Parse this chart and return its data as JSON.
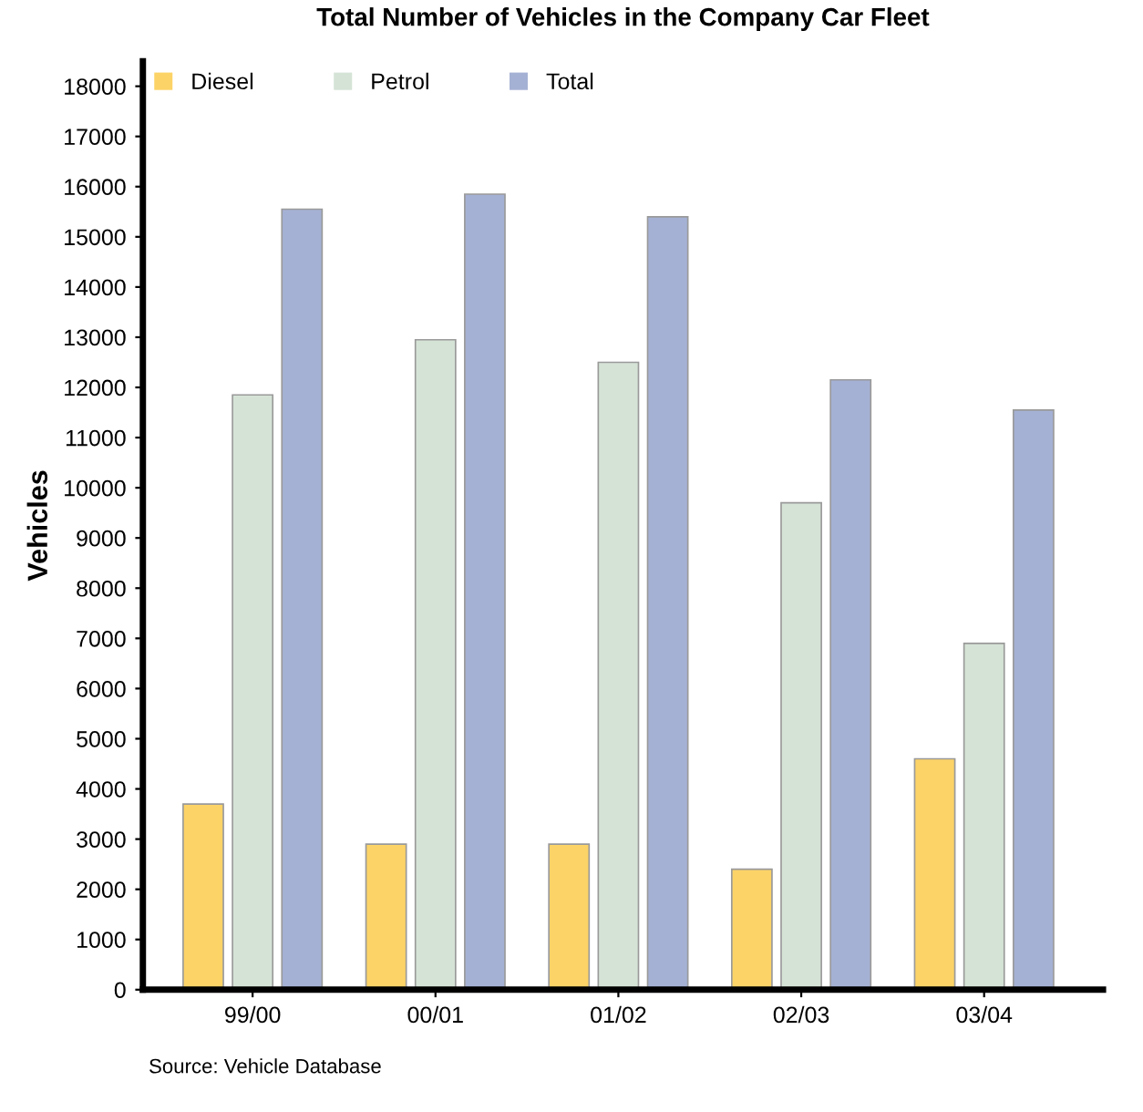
{
  "chart_data": {
    "type": "bar",
    "title": "Total Number of Vehicles in the Company Car Fleet",
    "ylabel": "Vehicles",
    "categories": [
      "99/00",
      "00/01",
      "01/02",
      "02/03",
      "03/04"
    ],
    "series": [
      {
        "name": "Diesel",
        "color": "#fcd367",
        "values": [
          3700,
          2900,
          2900,
          2400,
          4600
        ]
      },
      {
        "name": "Petrol",
        "color": "#d5e3d6",
        "values": [
          11850,
          12950,
          12500,
          9700,
          6900
        ]
      },
      {
        "name": "Total",
        "color": "#a5b1d4",
        "values": [
          15550,
          15850,
          15400,
          12150,
          11550
        ]
      }
    ],
    "ylim": [
      0,
      18500
    ],
    "yticks": [
      0,
      1000,
      2000,
      3000,
      4000,
      5000,
      6000,
      7000,
      8000,
      9000,
      10000,
      11000,
      12000,
      13000,
      14000,
      15000,
      16000,
      17000,
      18000
    ],
    "grid": false,
    "legend": "top left",
    "annotations": [
      "Source: Vehicle Database"
    ]
  }
}
